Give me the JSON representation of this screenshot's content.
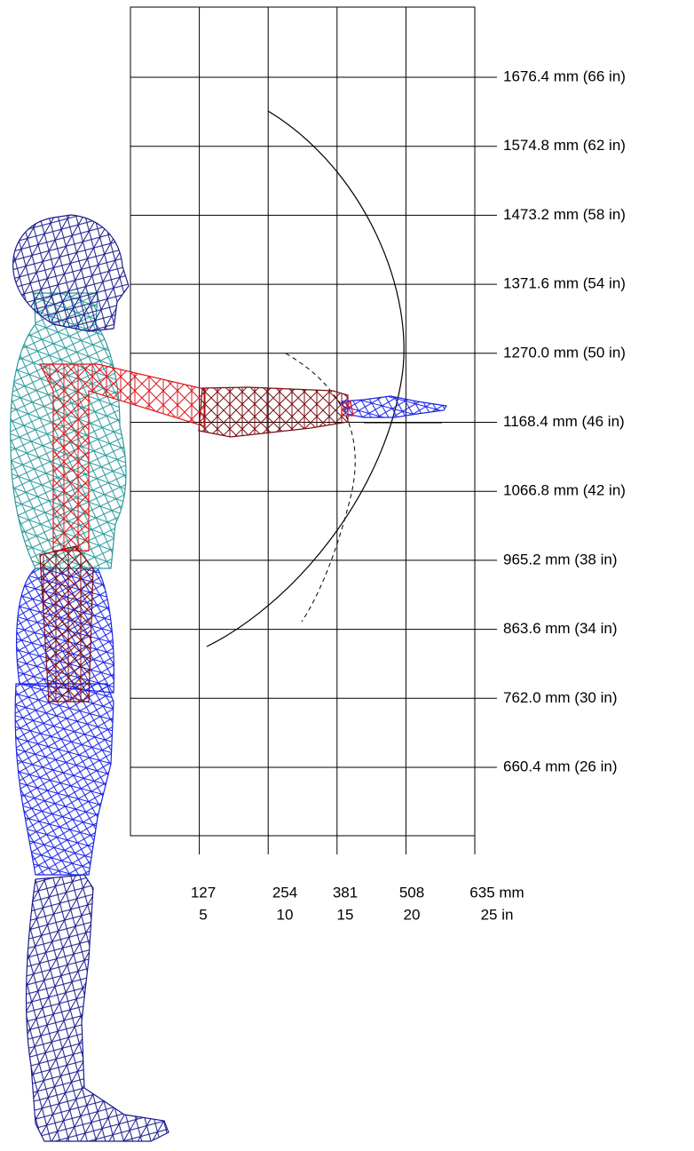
{
  "y_labels": [
    "1676.4 mm (66 in)",
    "1574.8 mm (62 in)",
    "1473.2 mm (58 in)",
    "1371.6 mm (54 in)",
    "1270.0 mm (50 in)",
    "1168.4 mm (46 in)",
    "1066.8 mm (42 in)",
    "965.2 mm (38 in)",
    "863.6 mm (34 in)",
    "762.0 mm (30 in)",
    "660.4 mm (26 in)"
  ],
  "x_labels": [
    {
      "mm": "127",
      "in": "5"
    },
    {
      "mm": "254",
      "in": "10"
    },
    {
      "mm": "381",
      "in": "15"
    },
    {
      "mm": "508",
      "in": "20"
    },
    {
      "mm": "635 mm",
      "in": "25 in"
    }
  ]
}
